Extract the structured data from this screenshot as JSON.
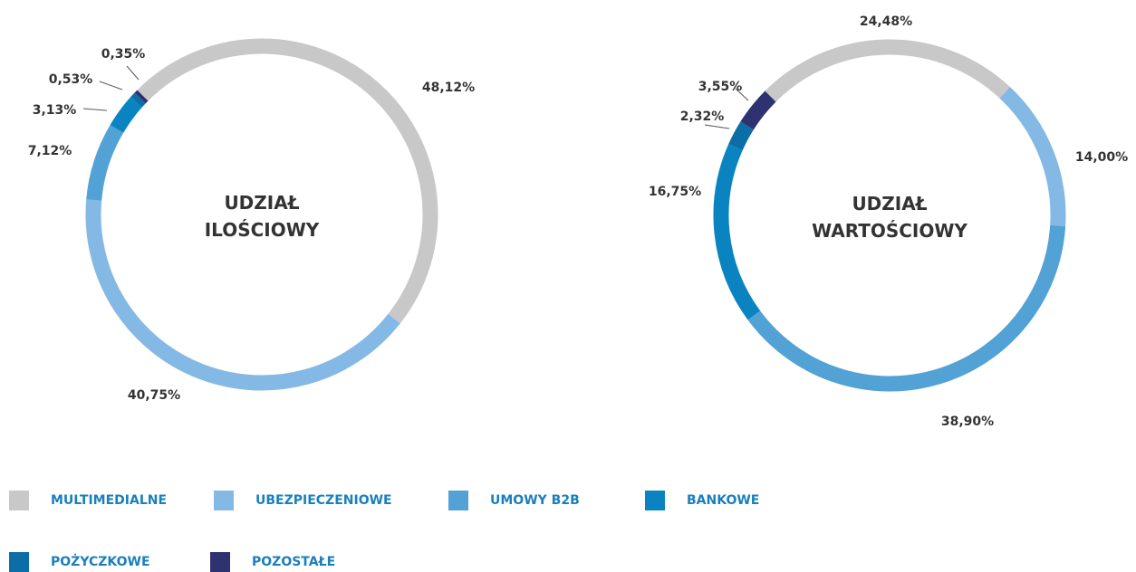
{
  "chart_data": [
    {
      "type": "pie",
      "title": "UDZIAŁ ILOŚCIOWY",
      "categories": [
        "MULTIMEDIALNE",
        "UBEZPIECZENIOWE",
        "UMOWY B2B",
        "BANKOWE",
        "POŻYCZKOWE",
        "POZOSTAŁE"
      ],
      "values": [
        48.12,
        40.75,
        7.12,
        3.13,
        0.53,
        0.35
      ],
      "value_labels": [
        "48,12%",
        "40,75%",
        "7,12%",
        "3,13%",
        "0,53%",
        "0,35%"
      ],
      "colors": [
        "#c8c8c8",
        "#85b9e5",
        "#52a2d6",
        "#0a84c1",
        "#0b6ea6",
        "#2e3271"
      ]
    },
    {
      "type": "pie",
      "title": "UDZIAŁ WARTOŚCIOWY",
      "categories": [
        "MULTIMEDIALNE",
        "UBEZPIECZENIOWE",
        "UMOWY B2B",
        "BANKOWE",
        "POŻYCZKOWE",
        "POZOSTAŁE"
      ],
      "values": [
        24.48,
        14.0,
        38.9,
        16.75,
        2.32,
        3.55
      ],
      "value_labels": [
        "24,48%",
        "14,00%",
        "38,90%",
        "16,75%",
        "2,32%",
        "3,55%"
      ],
      "colors": [
        "#c8c8c8",
        "#85b9e5",
        "#52a2d6",
        "#0a84c1",
        "#0b6ea6",
        "#2e3271"
      ]
    }
  ]
}
